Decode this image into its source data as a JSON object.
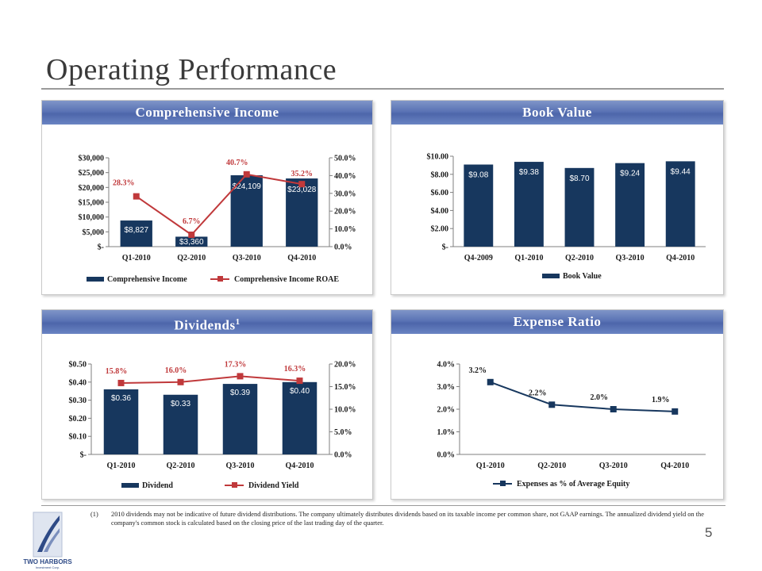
{
  "page": {
    "title": "Operating Performance",
    "page_number": "5",
    "footnote_marker": "(1)",
    "footnote_text": "2010 dividends may not be indicative of future dividend distributions. The company ultimately distributes dividends based on its taxable income per common share, not GAAP earnings. The annualized dividend yield on the company's common stock is calculated based on the closing price of the last trading day of the quarter.",
    "logo_name": "TWO HARBORS",
    "logo_sub": "Investment Corp."
  },
  "panels": {
    "comprehensive_income": {
      "title": "Comprehensive Income"
    },
    "book_value": {
      "title": "Book Value"
    },
    "dividends": {
      "title": "Dividends",
      "title_sup": "1"
    },
    "expense_ratio": {
      "title": "Expense Ratio"
    }
  },
  "chart_data": [
    {
      "id": "comprehensive_income",
      "type": "bar",
      "categories": [
        "Q1-2010",
        "Q2-2010",
        "Q3-2010",
        "Q4-2010"
      ],
      "series": [
        {
          "name": "Comprehensive Income",
          "type": "bar",
          "axis": "left",
          "values": [
            8827,
            3360,
            24109,
            23028
          ],
          "labels": [
            "$8,827",
            "$3,360",
            "$24,109",
            "$23,028"
          ],
          "color": "#17375e"
        },
        {
          "name": "Comprehensive Income ROAE",
          "type": "line",
          "axis": "right",
          "values": [
            28.3,
            6.7,
            40.7,
            35.2
          ],
          "labels": [
            "28.3%",
            "6.7%",
            "40.7%",
            "35.2%"
          ],
          "color": "#c0393b"
        }
      ],
      "y_left": {
        "min": 0,
        "max": 30000,
        "ticks": [
          "$-",
          "$5,000",
          "$10,000",
          "$15,000",
          "$20,000",
          "$25,000",
          "$30,000"
        ]
      },
      "y_right": {
        "min": 0,
        "max": 50,
        "ticks": [
          "0.0%",
          "10.0%",
          "20.0%",
          "30.0%",
          "40.0%",
          "50.0%"
        ]
      },
      "legend": "bottom"
    },
    {
      "id": "book_value",
      "type": "bar",
      "categories": [
        "Q4-2009",
        "Q1-2010",
        "Q2-2010",
        "Q3-2010",
        "Q4-2010"
      ],
      "series": [
        {
          "name": "Book Value",
          "type": "bar",
          "axis": "left",
          "values": [
            9.08,
            9.38,
            8.7,
            9.24,
            9.44
          ],
          "labels": [
            "$9.08",
            "$9.38",
            "$8.70",
            "$9.24",
            "$9.44"
          ],
          "color": "#17375e"
        }
      ],
      "y_left": {
        "min": 0,
        "max": 10,
        "ticks": [
          "$-",
          "$2.00",
          "$4.00",
          "$6.00",
          "$8.00",
          "$10.00"
        ]
      },
      "legend": "bottom"
    },
    {
      "id": "dividends",
      "type": "bar",
      "categories": [
        "Q1-2010",
        "Q2-2010",
        "Q3-2010",
        "Q4-2010"
      ],
      "series": [
        {
          "name": "Dividend",
          "type": "bar",
          "axis": "left",
          "values": [
            0.36,
            0.33,
            0.39,
            0.4
          ],
          "labels": [
            "$0.36",
            "$0.33",
            "$0.39",
            "$0.40"
          ],
          "color": "#17375e"
        },
        {
          "name": "Dividend Yield",
          "type": "line",
          "axis": "right",
          "values": [
            15.8,
            16.0,
            17.3,
            16.3
          ],
          "labels": [
            "15.8%",
            "16.0%",
            "17.3%",
            "16.3%"
          ],
          "color": "#c0393b"
        }
      ],
      "y_left": {
        "min": 0,
        "max": 0.5,
        "ticks": [
          "$-",
          "$0.10",
          "$0.20",
          "$0.30",
          "$0.40",
          "$0.50"
        ]
      },
      "y_right": {
        "min": 0,
        "max": 20,
        "ticks": [
          "0.0%",
          "5.0%",
          "10.0%",
          "15.0%",
          "20.0%"
        ]
      },
      "legend": "bottom"
    },
    {
      "id": "expense_ratio",
      "type": "line",
      "categories": [
        "Q1-2010",
        "Q2-2010",
        "Q3-2010",
        "Q4-2010"
      ],
      "series": [
        {
          "name": "Expenses as % of Average Equity",
          "type": "line",
          "axis": "left",
          "values": [
            3.2,
            2.2,
            2.0,
            1.9
          ],
          "labels": [
            "3.2%",
            "2.2%",
            "2.0%",
            "1.9%"
          ],
          "color": "#17375e"
        }
      ],
      "y_left": {
        "min": 0,
        "max": 4,
        "ticks": [
          "0.0%",
          "1.0%",
          "2.0%",
          "3.0%",
          "4.0%"
        ]
      },
      "legend": "bottom"
    }
  ]
}
